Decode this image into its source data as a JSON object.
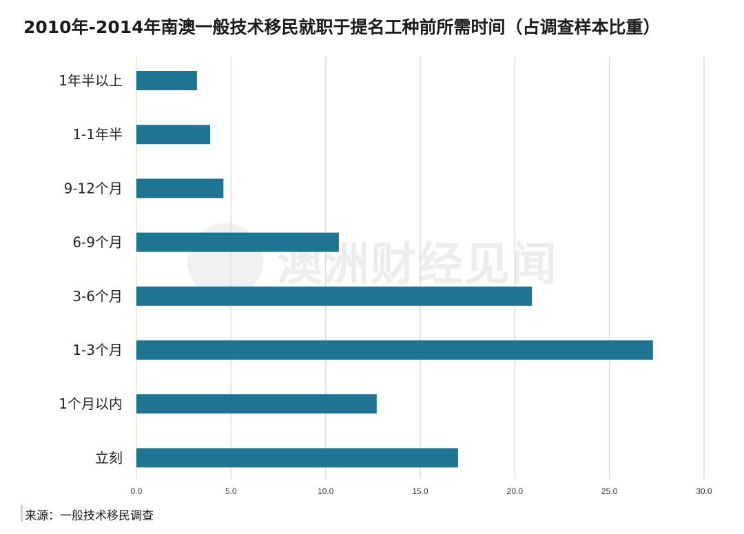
{
  "title": "2010年-2014年南澳一般技术移民就职于提名工种前所需时间（占调查样本比重）",
  "source": "来源：一般技术移民调查",
  "watermark": {
    "text": "澳洲财经见闻"
  },
  "colors": {
    "bar": "#1f7393",
    "grid": "#dcdcdc",
    "axis": "#e6d9a8"
  },
  "chart_data": {
    "type": "bar",
    "orientation": "horizontal",
    "categories": [
      "1年半以上",
      "1-1年半",
      "9-12个月",
      "6-9个月",
      "3-6个月",
      "1-3个月",
      "1个月以内",
      "立刻"
    ],
    "values": [
      3.2,
      3.9,
      4.6,
      10.7,
      20.9,
      27.3,
      12.7,
      17.0
    ],
    "xlim": [
      0,
      30
    ],
    "xticks": [
      "0.0",
      "5.0",
      "10.0",
      "15.0",
      "20.0",
      "25.0",
      "30.0"
    ],
    "xtick_values": [
      0,
      5,
      10,
      15,
      20,
      25,
      30
    ],
    "grid": true,
    "legend": "none"
  }
}
